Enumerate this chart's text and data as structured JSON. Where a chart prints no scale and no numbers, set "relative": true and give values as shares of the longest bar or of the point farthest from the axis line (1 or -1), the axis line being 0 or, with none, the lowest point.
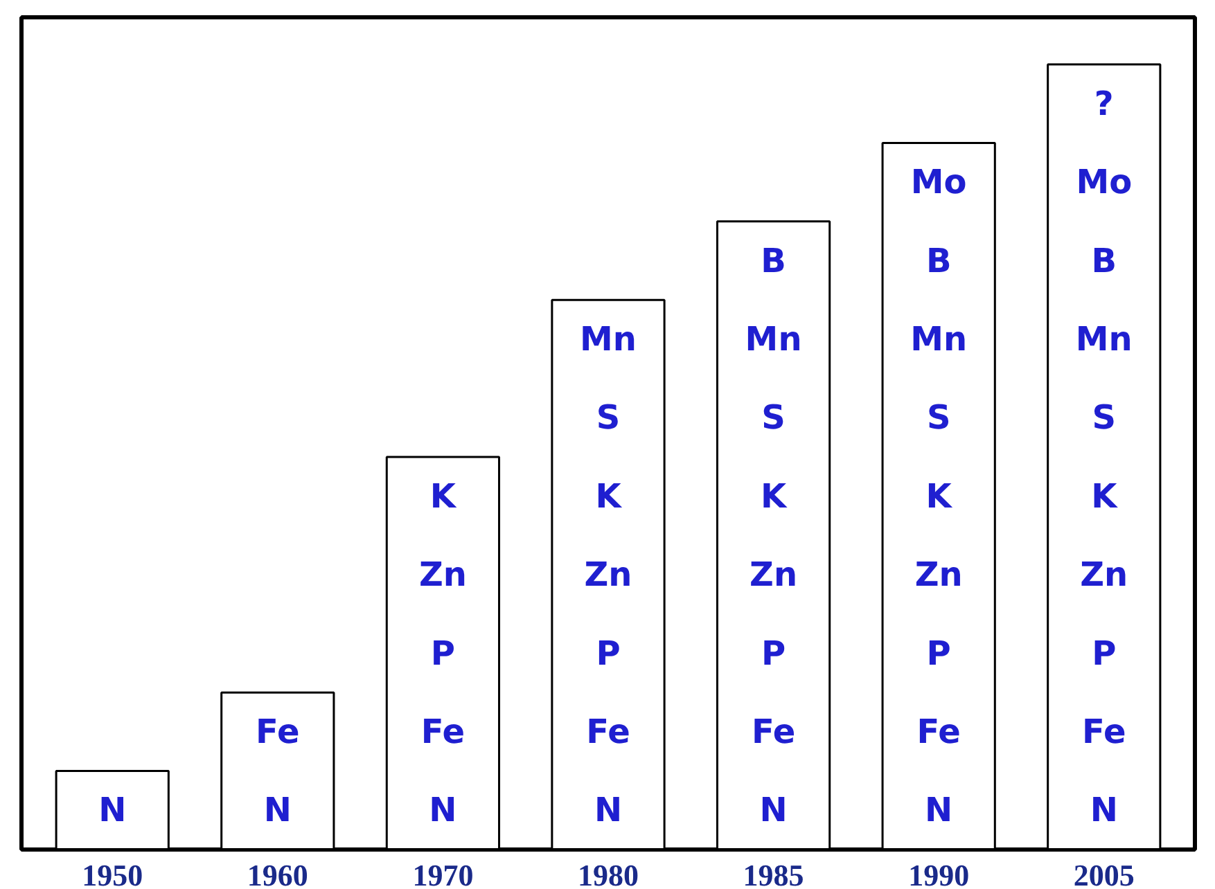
{
  "chart_data": {
    "type": "bar",
    "relative": true,
    "color": "#ffffff",
    "grid": false,
    "categories": [
      "1950",
      "1960",
      "1970",
      "1980",
      "1985",
      "1990",
      "2005"
    ],
    "values": [
      0.1,
      0.2,
      0.5,
      0.7,
      0.8,
      0.9,
      1
    ],
    "annotations": [
      "N",
      "Fe\nN",
      "K\nZn\nP\nFe\nN",
      "Mn\nS\nK\nZn\nP\nFe\nN",
      "B\nMn\nS\nK\nZn\nP\nFe\nN",
      "Mo\nB\nMn\nS\nK\nZn\nP\nFe\nN",
      "?\nMo\nB\nMn\nS\nK\nZn\nP\nFe\nN"
    ]
  }
}
